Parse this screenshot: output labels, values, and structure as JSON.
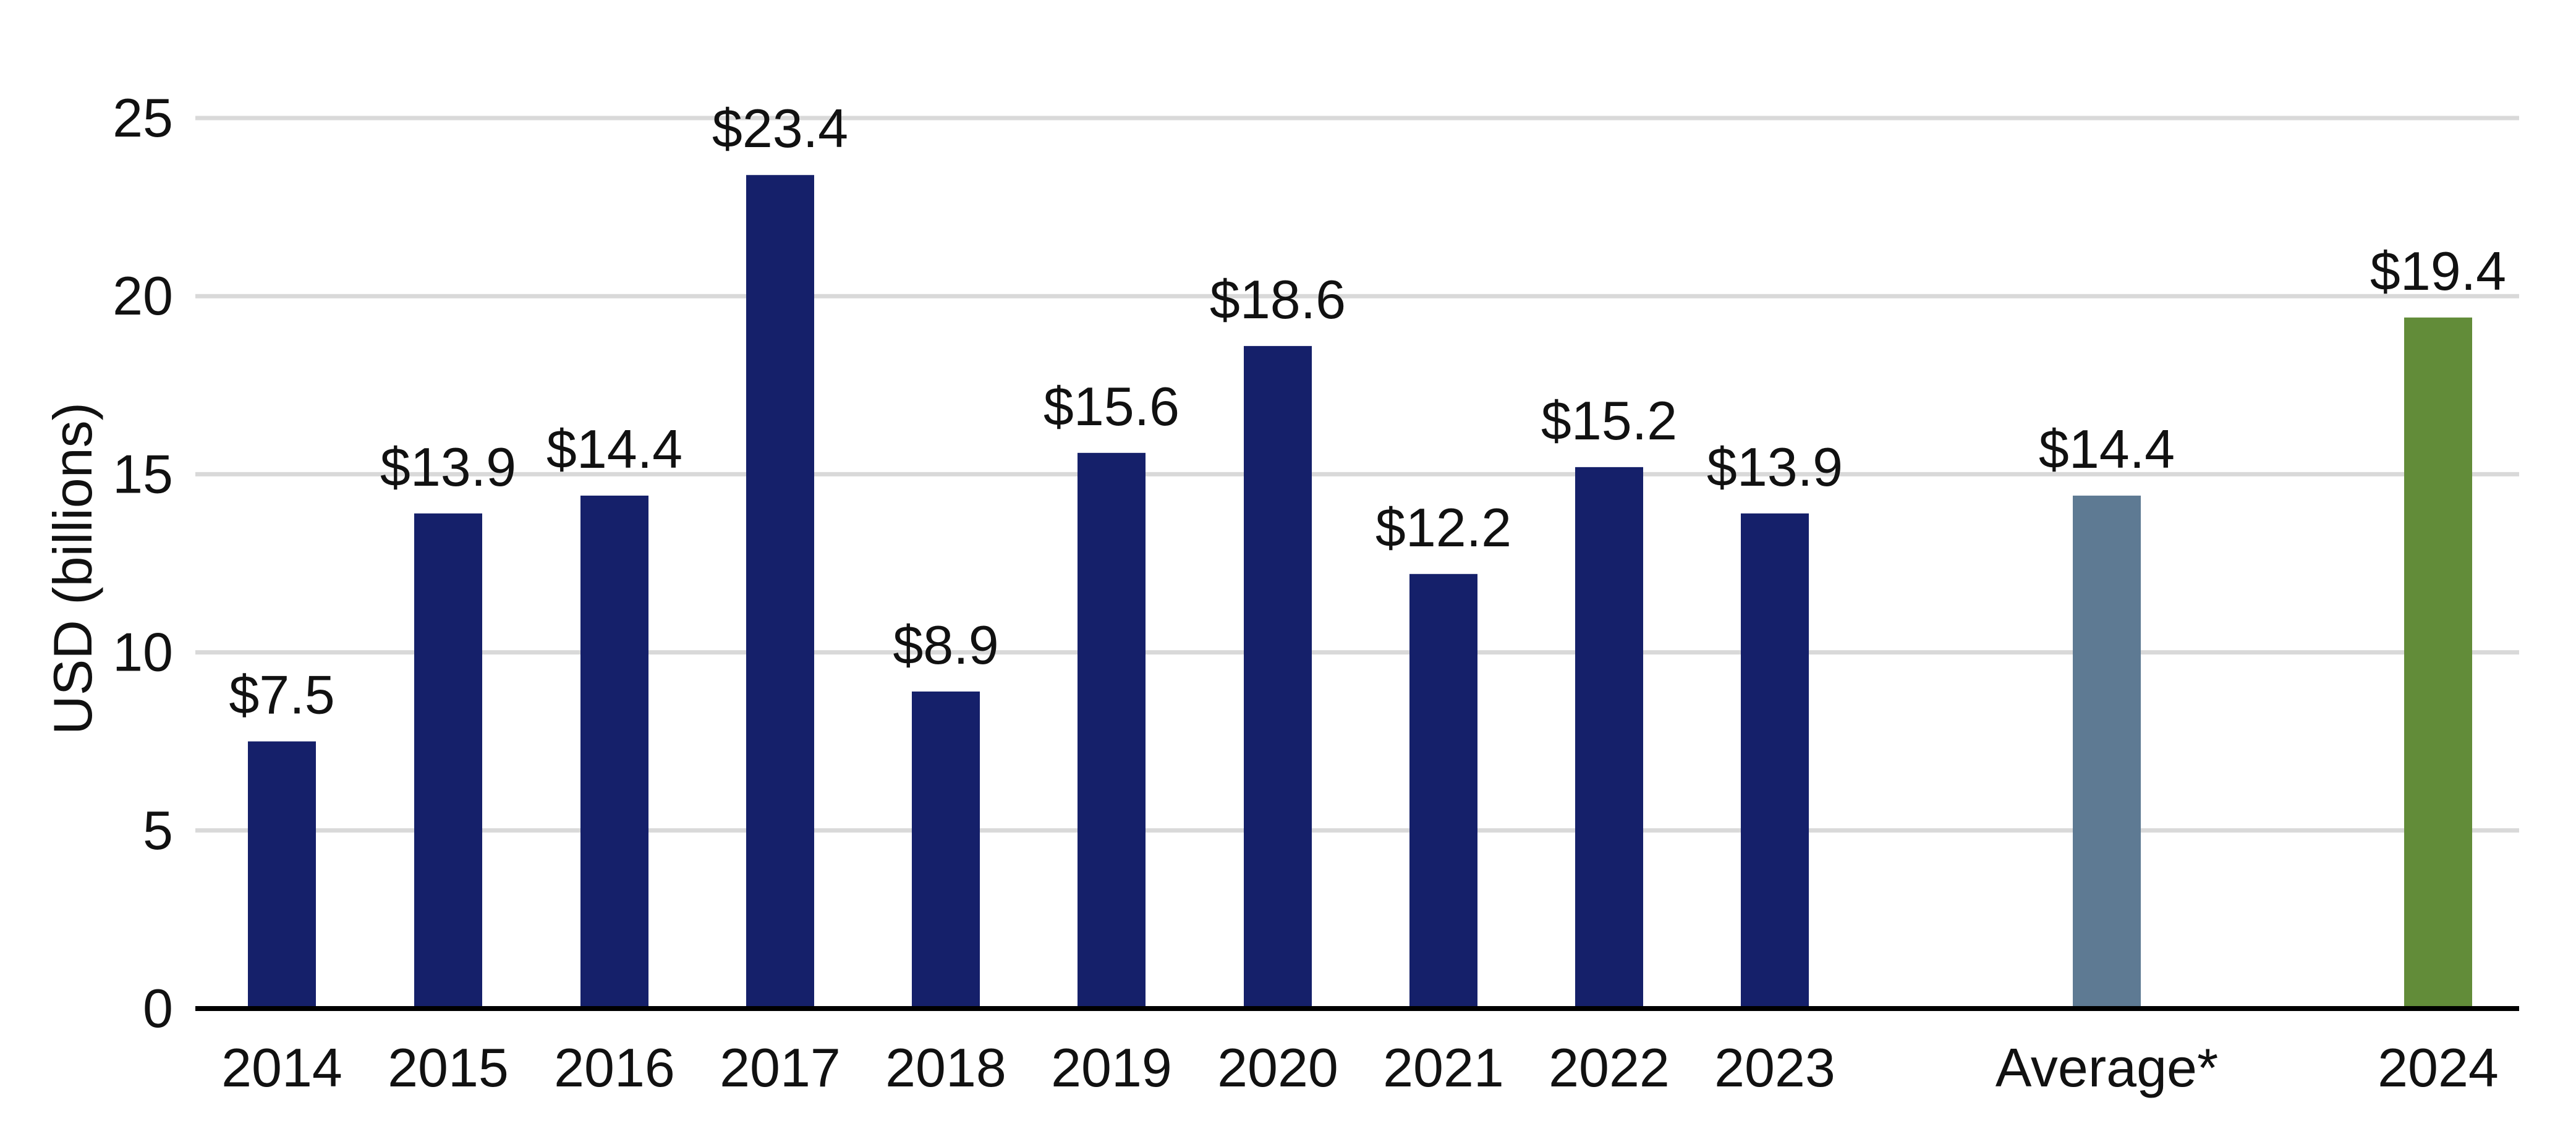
{
  "chart_data": {
    "type": "bar",
    "title": "",
    "xlabel": "",
    "ylabel": "USD (billions)",
    "ylim": [
      0,
      25
    ],
    "yticks": [
      0,
      5,
      10,
      15,
      20,
      25
    ],
    "grid": true,
    "legend": "none",
    "categories": [
      "2014",
      "2015",
      "2016",
      "2017",
      "2018",
      "2019",
      "2020",
      "2021",
      "2022",
      "2023",
      "Average*",
      "2024"
    ],
    "values": [
      7.5,
      13.9,
      14.4,
      23.4,
      8.9,
      15.6,
      18.6,
      12.2,
      15.2,
      13.9,
      14.4,
      19.4
    ],
    "data_labels": [
      "$7.5",
      "$13.9",
      "$14.4",
      "$23.4",
      "$8.9",
      "$15.6",
      "$18.6",
      "$12.2",
      "$15.2",
      "$13.9",
      "$14.4",
      "$19.4"
    ],
    "bar_colors": [
      "#15206a",
      "#15206a",
      "#15206a",
      "#15206a",
      "#15206a",
      "#15206a",
      "#15206a",
      "#15206a",
      "#15206a",
      "#15206a",
      "#5e7a93",
      "#628c39"
    ],
    "gridline_color": "#d9d9d9",
    "axis_color": "#000000"
  }
}
